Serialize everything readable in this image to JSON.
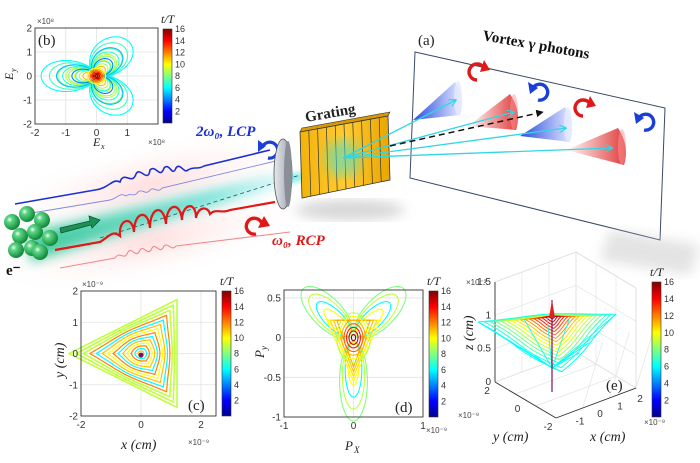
{
  "schematic": {
    "panel_label": "(a)",
    "title": "Vortex γ photons",
    "grating_label": "Grating",
    "laser_high": {
      "label": "2ω₀, LCP",
      "color": "#1a2fd6",
      "helicity_icon": "counterclockwise-arrow"
    },
    "laser_low": {
      "label": "ω₀, RCP",
      "color": "#e01818",
      "helicity_icon": "clockwise-arrow"
    },
    "electron_label": "e⁻",
    "electron_color": "#1f9b4a",
    "beam_color": "#3ee0d0",
    "photon_cones": [
      {
        "color": "blue",
        "helicity": "red-clockwise"
      },
      {
        "color": "red",
        "helicity": "blue-counterclockwise"
      },
      {
        "color": "blue",
        "helicity": "red-clockwise"
      },
      {
        "color": "red",
        "helicity": "blue-counterclockwise"
      }
    ]
  },
  "chart_data": [
    {
      "id": "b",
      "type": "line",
      "panel_label": "(b)",
      "description": "Electric field trajectory (trefoil), colored by t/T",
      "xlabel": "E_x",
      "ylabel": "E_y",
      "xlim": [
        -2,
        2
      ],
      "ylim": [
        -2,
        2
      ],
      "xticks": [
        "-2",
        "-1",
        "0",
        "1"
      ],
      "yticks": [
        "2",
        "1",
        "0",
        "-1",
        "-2"
      ],
      "xscale": "×10⁸",
      "yscale": "×10⁸",
      "grid": true,
      "colorbar": {
        "label": "t/T",
        "range": [
          0,
          16
        ],
        "ticks": [
          "16",
          "14",
          "12",
          "10",
          "8",
          "6",
          "4",
          "2"
        ],
        "colormap": "jet"
      },
      "series": [
        {
          "name": "outer loop",
          "amplitude": 1.8,
          "t_range": [
            6,
            9
          ]
        },
        {
          "name": "middle loop",
          "amplitude": 1.3,
          "t_range": [
            5,
            10
          ]
        },
        {
          "name": "inner loop",
          "amplitude": 0.8,
          "t_range": [
            4,
            11
          ]
        },
        {
          "name": "core",
          "amplitude": 0.2,
          "t_range": [
            11,
            16
          ]
        }
      ]
    },
    {
      "id": "c",
      "type": "line",
      "panel_label": "(c)",
      "description": "Electron transverse trajectory (triangular spiral), colored by t/T",
      "xlabel": "x (cm)",
      "ylabel": "y (cm)",
      "xlim": [
        -2,
        2.5
      ],
      "ylim": [
        -2,
        2
      ],
      "xticks": [
        "-2",
        "0",
        "2"
      ],
      "yticks": [
        "2",
        "1",
        "0",
        "-1",
        "-2"
      ],
      "xscale": "×10⁻⁹",
      "yscale": "×10⁻⁹",
      "grid": true,
      "colorbar": {
        "label": "t/T",
        "range": [
          0,
          16
        ],
        "ticks": [
          "16",
          "14",
          "12",
          "10",
          "8",
          "6",
          "4",
          "2"
        ],
        "colormap": "jet"
      },
      "series": [
        {
          "name": "outer triangle",
          "vertices": [
            [
              -1.2,
              2
            ],
            [
              2.4,
              0
            ],
            [
              -1.2,
              -2
            ]
          ],
          "t": 9
        },
        {
          "name": "spiral",
          "r_max": 1.3,
          "r_min": 0.05,
          "t_range": [
            6,
            16
          ]
        }
      ]
    },
    {
      "id": "d",
      "type": "line",
      "panel_label": "(d)",
      "description": "Electron momentum trajectory, colored by t/T",
      "xlabel": "P_x",
      "ylabel": "P_y",
      "xlim": [
        -1,
        1
      ],
      "ylim": [
        -1,
        0.6
      ],
      "xticks": [
        "-1",
        "0",
        "1"
      ],
      "yticks": [
        "0.5",
        "0",
        "-0.5",
        "-1"
      ],
      "grid": true,
      "colorbar": {
        "label": "t/T",
        "range": [
          0,
          16
        ],
        "ticks": [
          "16",
          "14",
          "12",
          "10",
          "8",
          "6",
          "4",
          "2"
        ],
        "colormap": "jet"
      },
      "series": [
        {
          "name": "petal loops",
          "petal_length": 1.0,
          "t_range": [
            5,
            9
          ]
        },
        {
          "name": "central triangle",
          "size": 0.25,
          "t_range": [
            9,
            12
          ]
        },
        {
          "name": "core spiral",
          "r_max": 0.15,
          "t_range": [
            11,
            16
          ]
        }
      ]
    },
    {
      "id": "e",
      "type": "line",
      "panel_label": "(e)",
      "description": "3D electron trajectory (x, y, z), colored by t/T",
      "xlabel": "x (cm)",
      "ylabel": "y (cm)",
      "zlabel": "z (cm)",
      "xticks": [
        "-1",
        "0",
        "1",
        "2"
      ],
      "yticks": [
        "2",
        "0",
        "-2"
      ],
      "zticks": [
        "0",
        "0.5",
        "1",
        "1.5"
      ],
      "xscale": "×10⁻⁹",
      "yscale": "×10⁻⁹",
      "zscale": "×10⁻³",
      "zlim": [
        0,
        1.5
      ],
      "grid": true,
      "colorbar": {
        "label": "t/T",
        "range": [
          0,
          16
        ],
        "ticks": [
          "16",
          "14",
          "12",
          "10",
          "8",
          "6",
          "4",
          "2"
        ],
        "colormap": "jet"
      }
    }
  ]
}
